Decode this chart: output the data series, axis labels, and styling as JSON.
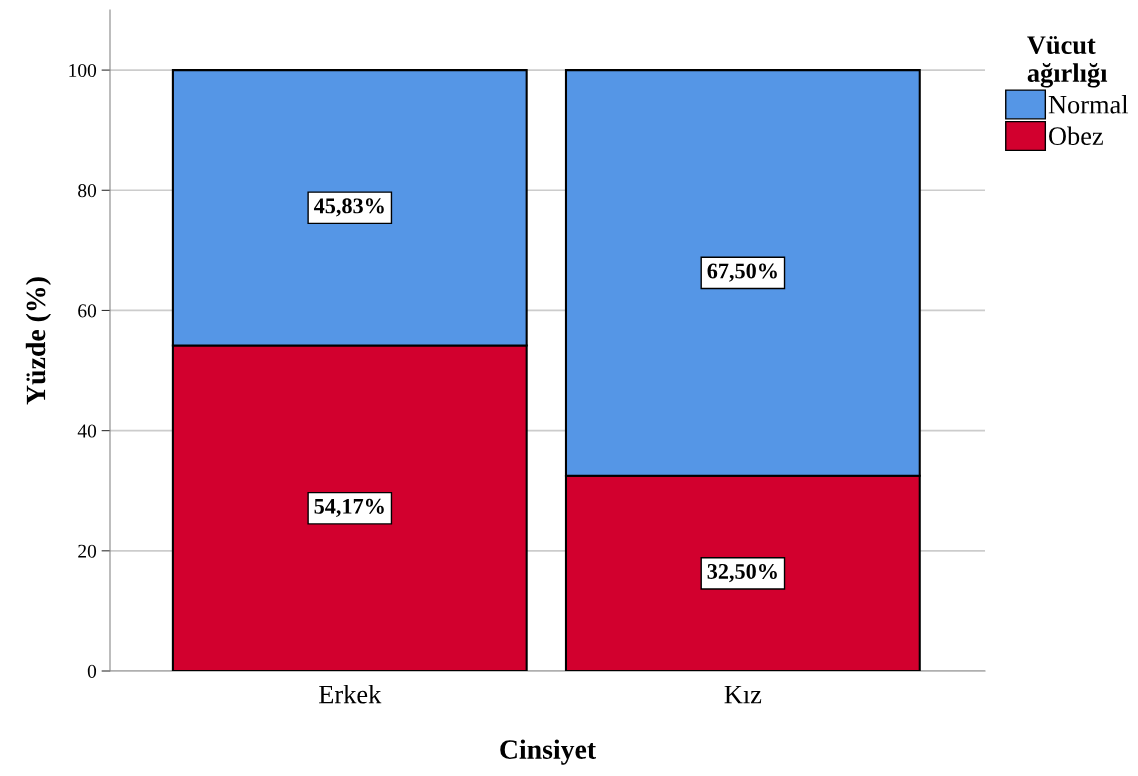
{
  "chart_data": {
    "type": "bar",
    "stacked": true,
    "xlabel": "Cinsiyet",
    "ylabel": "Yüzde (%)",
    "legend_title": "Vücut\nağırlığı",
    "categories": [
      "Erkek",
      "Kız"
    ],
    "series": [
      {
        "name": "Obez",
        "color": "#d2002e",
        "values": [
          54.17,
          32.5
        ],
        "value_labels": [
          "54,17%",
          "32,50%"
        ]
      },
      {
        "name": "Normal",
        "color": "#5596e6",
        "values": [
          45.83,
          67.5
        ],
        "value_labels": [
          "45,83%",
          "67,50%"
        ]
      }
    ],
    "ylim": [
      0,
      110
    ],
    "yticks": [
      0,
      20,
      40,
      60,
      80,
      100
    ],
    "grid": "y",
    "legend": "top right"
  }
}
